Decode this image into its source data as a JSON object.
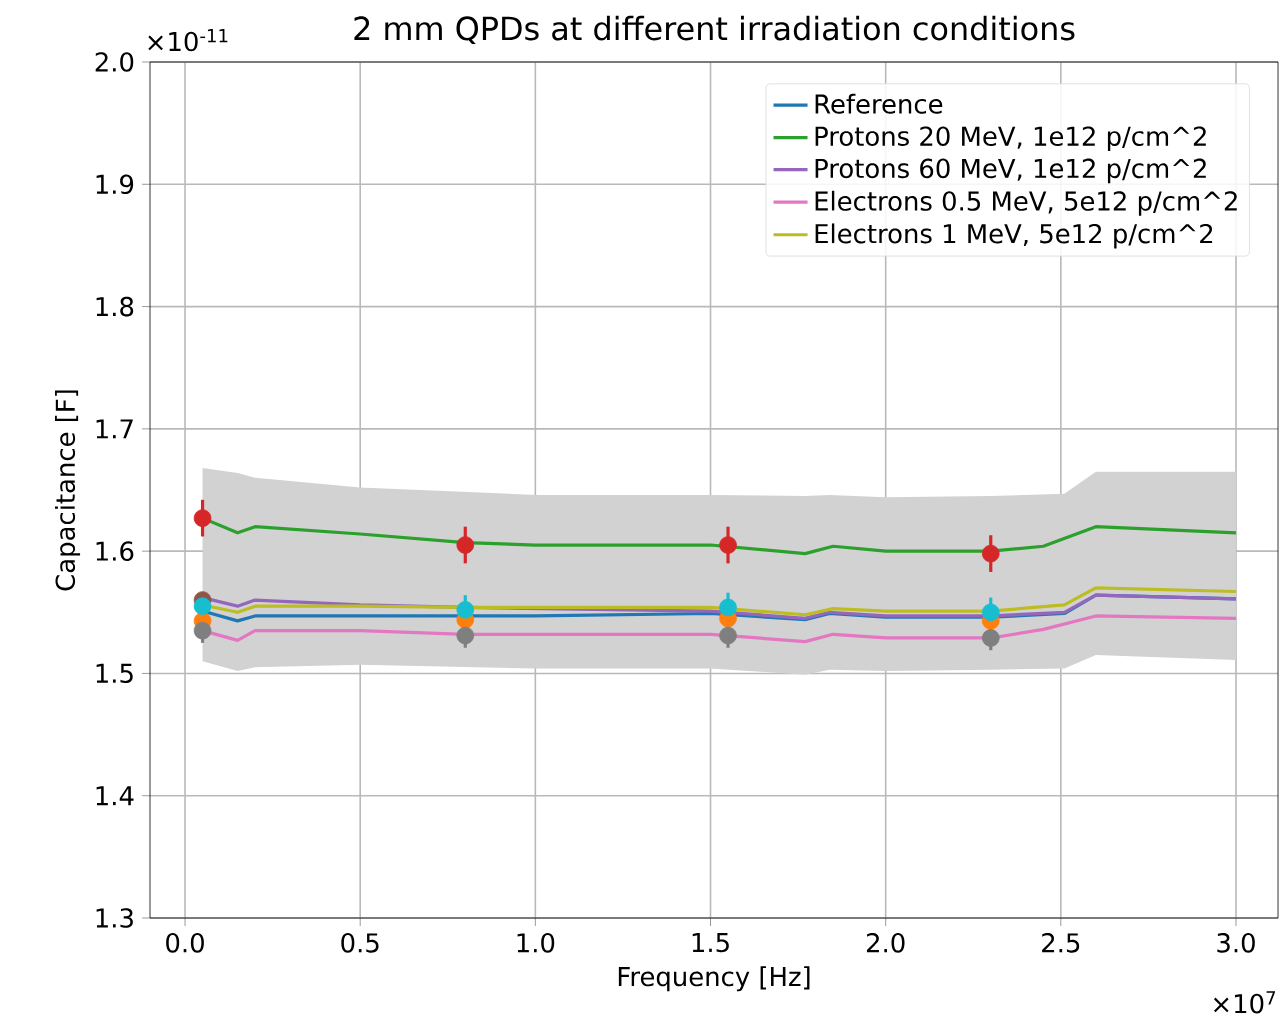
{
  "chart_data": {
    "type": "line",
    "title": "2 mm QPDs at different irradiation conditions",
    "xlabel": "Frequency [Hz]",
    "ylabel": "Capacitance [F]",
    "annotations": [
      "×10$^{-11}$",
      "×10$^{7}$"
    ],
    "xlim": [
      -0.1,
      3.12
    ],
    "ylim": [
      1.3,
      2.0
    ],
    "xticks": [
      {
        "value": 0,
        "label": "0.0"
      },
      0.5,
      {
        "value": 1,
        "label": "1.0"
      },
      1.5,
      {
        "value": 2,
        "label": "2.0"
      },
      2.5,
      {
        "value": 3,
        "label": "3.0"
      }
    ],
    "yticks": [
      1.3,
      1.4,
      1.5,
      1.6,
      1.7,
      1.8,
      1.9,
      {
        "value": 2,
        "label": "2.0"
      }
    ],
    "grid": true,
    "legend": "top right",
    "line_style": "solid",
    "series": [
      {
        "name": "Reference",
        "color": "#1f77b4",
        "x": [
          0.05,
          0.15,
          0.2,
          0.5,
          1.0,
          1.5,
          1.77,
          1.84,
          2.0,
          2.3,
          2.51,
          2.6,
          3.0
        ],
        "values": [
          1.551,
          1.543,
          1.547,
          1.547,
          1.547,
          1.549,
          1.544,
          1.549,
          1.546,
          1.546,
          1.549,
          1.564,
          1.561
        ],
        "lower": [
          1.51,
          1.502,
          1.505,
          1.507,
          1.504,
          1.504,
          1.499,
          1.503,
          1.502,
          1.503,
          1.504,
          1.515,
          1.511
        ],
        "upper": [
          1.668,
          1.664,
          1.66,
          1.652,
          1.646,
          1.646,
          1.645,
          1.646,
          1.644,
          1.645,
          1.647,
          1.665,
          1.665
        ]
      },
      {
        "name": "Protons 20 MeV, 1e12 p/cm^2",
        "color": "#2ca02c",
        "x": [
          0.05,
          0.15,
          0.2,
          0.5,
          0.8,
          1.0,
          1.5,
          1.77,
          1.85,
          2.0,
          2.3,
          2.45,
          2.6,
          3.0
        ],
        "values": [
          1.627,
          1.615,
          1.62,
          1.614,
          1.607,
          1.605,
          1.605,
          1.598,
          1.604,
          1.6,
          1.6,
          1.604,
          1.62,
          1.615
        ]
      },
      {
        "name": "Protons 60 MeV, 1e12 p/cm^2",
        "color": "#9467bd",
        "x": [
          0.05,
          0.15,
          0.2,
          0.5,
          0.8,
          1.5,
          1.77,
          1.84,
          2.0,
          2.3,
          2.51,
          2.6,
          3.0
        ],
        "values": [
          1.562,
          1.555,
          1.56,
          1.556,
          1.554,
          1.551,
          1.545,
          1.55,
          1.547,
          1.547,
          1.55,
          1.564,
          1.561
        ]
      },
      {
        "name": "Electrons 0.5 MeV, 5e12 p/cm^2",
        "color": "#e377c2",
        "x": [
          0.05,
          0.15,
          0.2,
          0.5,
          0.8,
          1.5,
          1.77,
          1.85,
          2.0,
          2.3,
          2.45,
          2.6,
          3.0
        ],
        "values": [
          1.535,
          1.527,
          1.535,
          1.535,
          1.532,
          1.532,
          1.526,
          1.532,
          1.529,
          1.529,
          1.536,
          1.547,
          1.545
        ]
      },
      {
        "name": "Electrons 1 MeV, 5e12 p/cm^2",
        "color": "#bcbd22",
        "x": [
          0.05,
          0.15,
          0.2,
          0.5,
          0.8,
          1.5,
          1.77,
          1.85,
          2.0,
          2.3,
          2.51,
          2.6,
          3.0
        ],
        "values": [
          1.556,
          1.55,
          1.555,
          1.555,
          1.554,
          1.554,
          1.548,
          1.553,
          1.551,
          1.551,
          1.556,
          1.57,
          1.567
        ]
      },
      {
        "type": "scatter",
        "marker": "circle",
        "color": "#8c564b",
        "x": [
          0.05
        ],
        "values": [
          1.56
        ]
      },
      {
        "type": "scatter",
        "marker": "circle",
        "color": "#ff7f0e",
        "x": [
          0.05,
          0.8,
          1.55,
          2.3
        ],
        "values": [
          1.543,
          1.544,
          1.545,
          1.543
        ]
      },
      {
        "type": "scatter",
        "marker": "circle",
        "color": "#d62728",
        "x": [
          0.05,
          0.8,
          1.55,
          2.3
        ],
        "values": [
          1.627,
          1.605,
          1.605,
          1.598
        ],
        "errors": [
          0.015,
          0.015,
          0.015,
          0.015
        ]
      },
      {
        "type": "scatter",
        "marker": "circle",
        "color": "#7f7f7f",
        "x": [
          0.05,
          0.8,
          1.55,
          2.3
        ],
        "values": [
          1.535,
          1.531,
          1.531,
          1.529
        ],
        "errors": [
          0.01,
          0.01,
          0.01,
          0.01
        ]
      },
      {
        "type": "scatter",
        "marker": "circle",
        "color": "#17becf",
        "x": [
          0.05,
          0.8,
          1.55,
          2.3
        ],
        "values": [
          1.555,
          1.552,
          1.554,
          1.55
        ],
        "errors": [
          null,
          0.012,
          0.012,
          0.012
        ]
      }
    ]
  }
}
